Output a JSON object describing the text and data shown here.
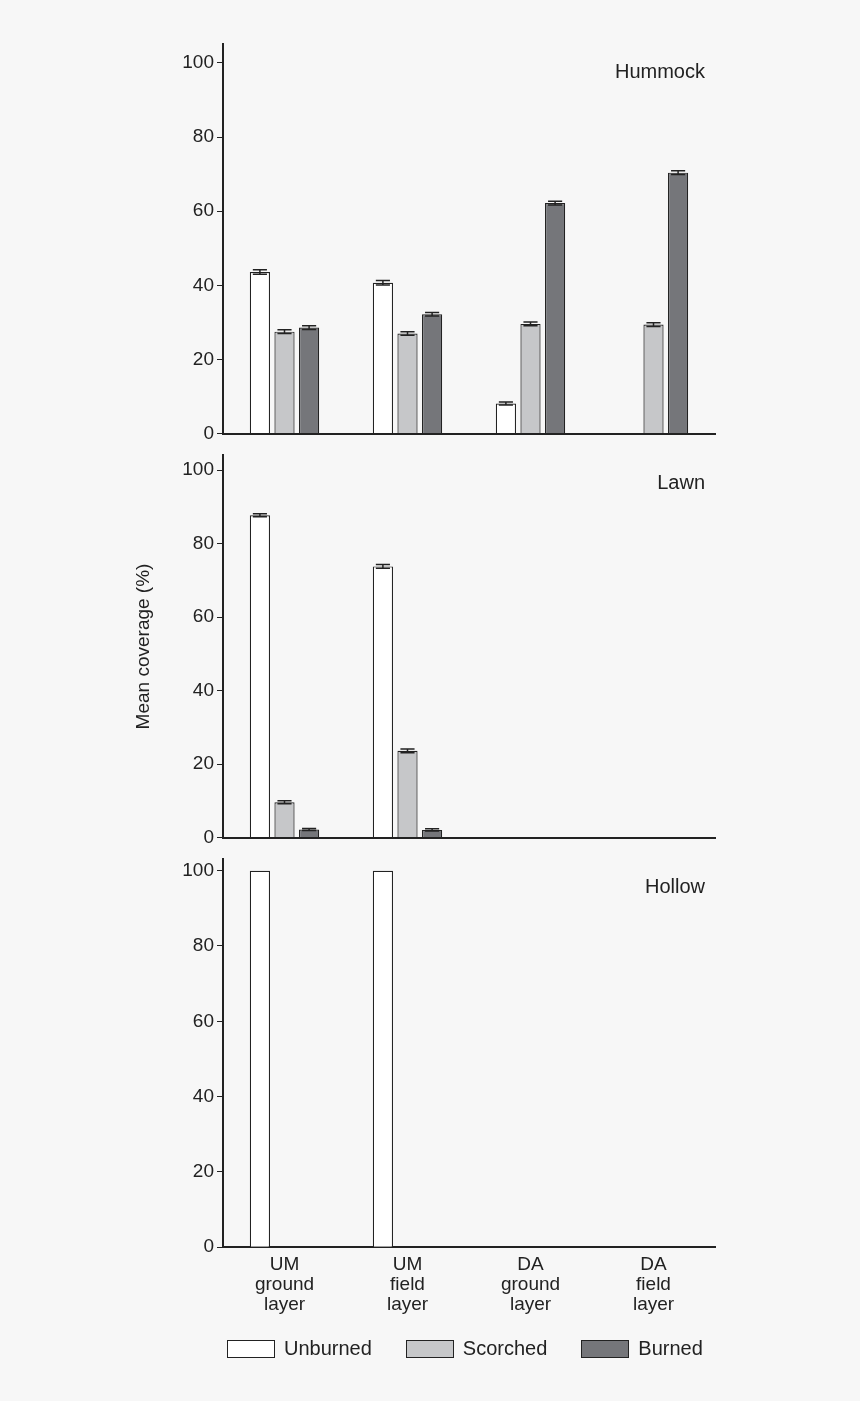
{
  "chart_data": [
    {
      "type": "bar",
      "title": "Hummock",
      "categories": [
        null,
        null,
        null,
        null
      ],
      "ylim": [
        0,
        105
      ],
      "yticks": [
        0,
        20,
        40,
        60,
        80,
        100
      ],
      "grid": false,
      "tick_labels": "y",
      "series": [
        {
          "color": "#ffffff",
          "values": [
            43.6,
            40.7,
            8.1,
            null
          ],
          "errors": [
            0.6,
            0.6,
            0.4,
            null
          ]
        },
        {
          "color": "#c6c7c9",
          "values": [
            27.5,
            27.0,
            29.6,
            29.4
          ],
          "errors": [
            0.5,
            0.5,
            0.5,
            0.5
          ]
        },
        {
          "color": "#75767a",
          "values": [
            28.6,
            32.2,
            62.2,
            70.4
          ],
          "errors": [
            0.5,
            0.5,
            0.5,
            0.5
          ]
        }
      ]
    },
    {
      "type": "bar",
      "title": "Lawn",
      "ylabel": "Mean coverage (%)",
      "categories": [
        null,
        null,
        null,
        null
      ],
      "ylim": [
        0,
        104
      ],
      "yticks": [
        0,
        20,
        40,
        60,
        80,
        100
      ],
      "grid": false,
      "tick_labels": "y",
      "series": [
        {
          "color": "#ffffff",
          "values": [
            87.7,
            73.8,
            null,
            null
          ],
          "errors": [
            0.4,
            0.5,
            null,
            null
          ]
        },
        {
          "color": "#c6c7c9",
          "values": [
            9.6,
            23.6,
            null,
            null
          ],
          "errors": [
            0.4,
            0.5,
            null,
            null
          ]
        },
        {
          "color": "#75767a",
          "values": [
            2.2,
            2.1,
            null,
            null
          ],
          "errors": [
            0.3,
            0.3,
            null,
            null
          ]
        }
      ]
    },
    {
      "type": "bar",
      "title": "Hollow",
      "categories": [
        "UM ground layer",
        "UM field layer",
        "DA ground layer",
        "DA field layer"
      ],
      "ylim": [
        0,
        103
      ],
      "yticks": [
        0,
        20,
        40,
        60,
        80,
        100
      ],
      "grid": false,
      "legend": "bottom",
      "series": [
        {
          "name": "Unburned",
          "color": "#ffffff",
          "values": [
            100,
            100,
            null,
            null
          ]
        },
        {
          "name": "Scorched",
          "color": "#c6c7c9",
          "values": [
            null,
            null,
            null,
            null
          ]
        },
        {
          "name": "Burned",
          "color": "#75767a",
          "values": [
            null,
            null,
            null,
            null
          ]
        }
      ]
    }
  ]
}
